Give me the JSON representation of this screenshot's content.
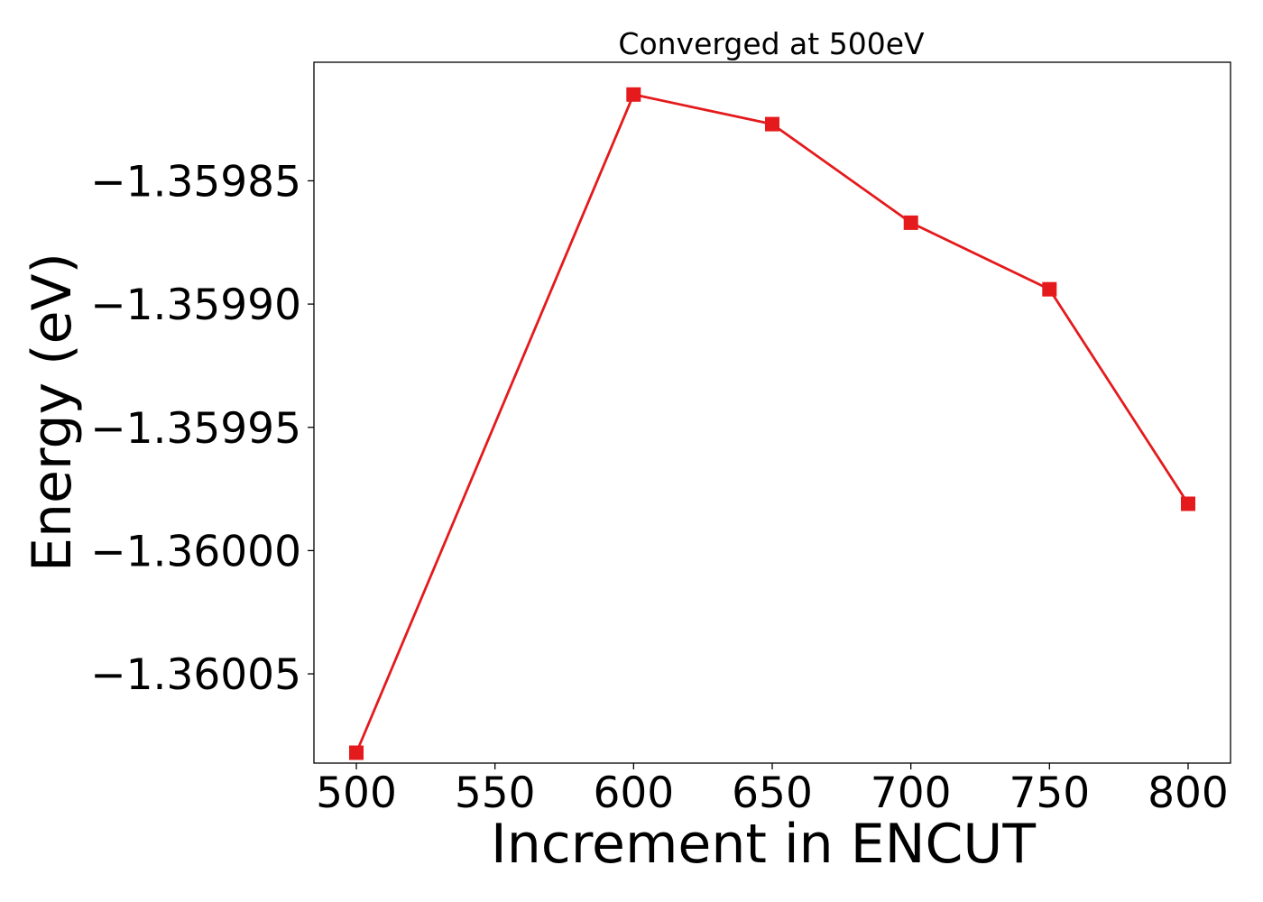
{
  "chart_data": {
    "type": "line",
    "title": "Converged at 500eV",
    "xlabel": "Increment in ENCUT",
    "ylabel": "Energy (eV)",
    "x": [
      500,
      600,
      650,
      700,
      750,
      800
    ],
    "series": [
      {
        "values": [
          -1.360082,
          -1.359815,
          -1.359827,
          -1.359867,
          -1.359894,
          -1.359981
        ],
        "color": "#e41a1c",
        "marker": "square"
      }
    ],
    "xticks": [
      500,
      550,
      600,
      650,
      700,
      750,
      800
    ],
    "xtick_labels": [
      "500",
      "550",
      "600",
      "650",
      "700",
      "750",
      "800"
    ],
    "yticks": [
      -1.35985,
      -1.3599,
      -1.35995,
      -1.36,
      -1.36005
    ],
    "ytick_labels": [
      "−1.35985",
      "−1.35990",
      "−1.35995",
      "−1.36000",
      "−1.36005"
    ],
    "xlim": [
      484.7,
      815.3
    ],
    "ylim": [
      -1.3600862,
      -1.3598019
    ],
    "grid": false,
    "legend": "none"
  }
}
